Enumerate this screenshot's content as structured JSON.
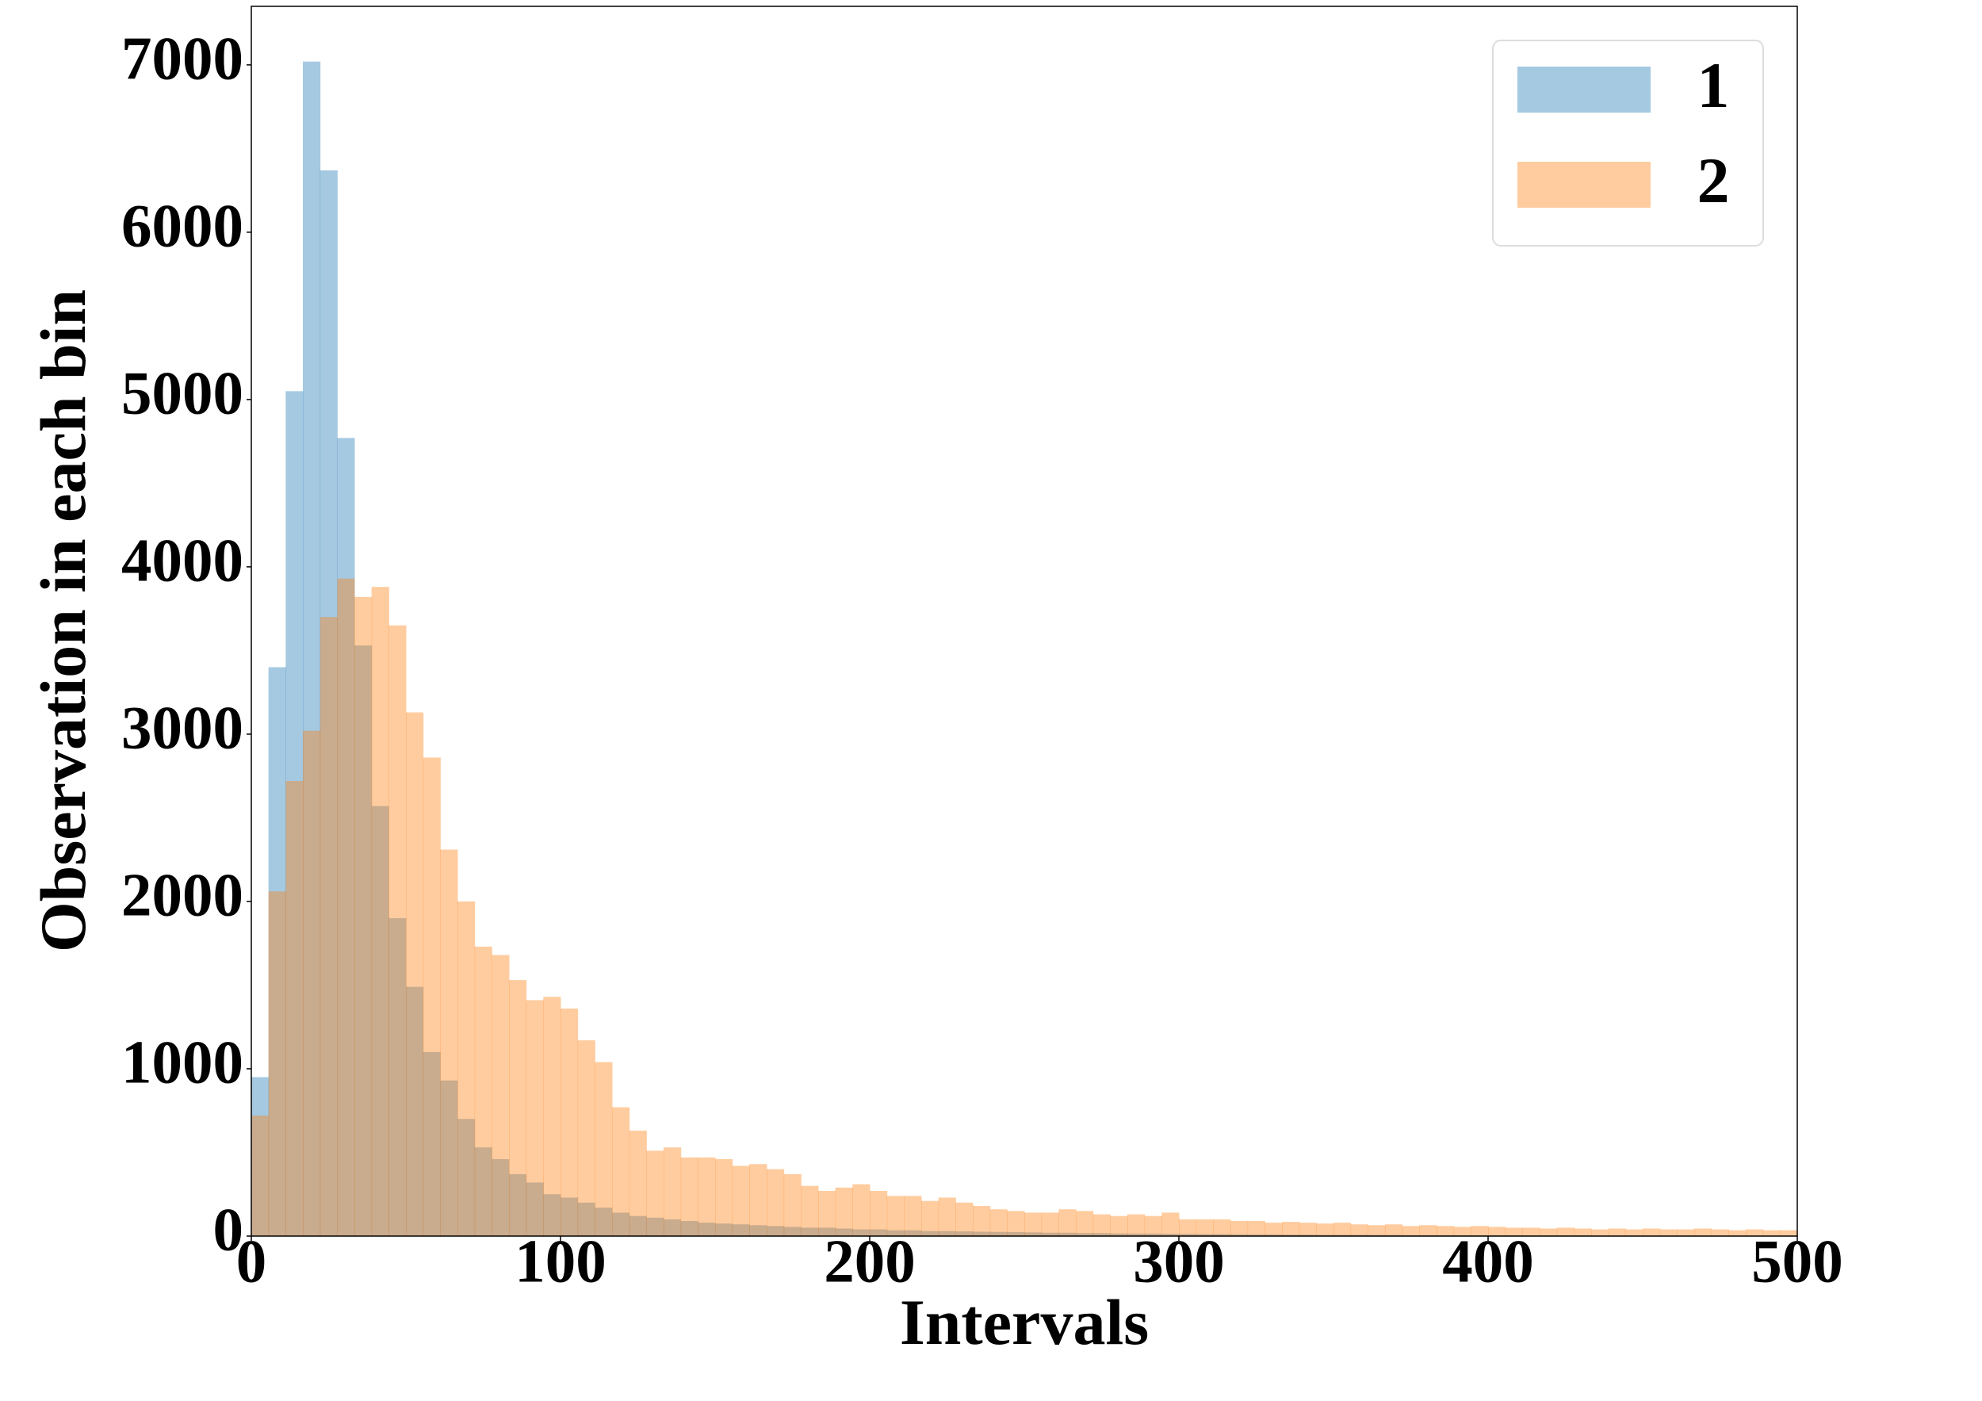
{
  "chart_data": {
    "type": "histogram",
    "xlabel": "Intervals",
    "ylabel": "Observation in each bin",
    "bins": [
      0,
      5.5556,
      11.1111,
      16.6667,
      22.2222,
      27.7778,
      33.3333,
      38.8889,
      44.4444,
      50,
      55.5556,
      61.1111,
      66.6667,
      72.2222,
      77.7778,
      83.3333,
      88.8889,
      94.4444,
      100,
      105.5556,
      111.1111,
      116.6667,
      122.2222,
      127.7778,
      133.3333,
      138.8889,
      144.4444,
      150,
      155.5556,
      161.1111,
      166.6667,
      172.2222,
      177.7778,
      183.3333,
      188.8889,
      194.4444,
      200,
      205.5556,
      211.1111,
      216.6667,
      222.2222,
      227.7778,
      233.3333,
      238.8889,
      244.4444,
      250,
      255.5556,
      261.1111,
      266.6667,
      272.2222,
      277.7778,
      283.3333,
      288.8889,
      294.4444,
      300,
      305.5556,
      311.1111,
      316.6667,
      322.2222,
      327.7778,
      333.3333,
      338.8889,
      344.4444,
      350,
      355.5556,
      361.1111,
      366.6667,
      372.2222,
      377.7778,
      383.3333,
      388.8889,
      394.4444,
      400,
      405.5556,
      411.1111,
      416.6667,
      422.2222,
      427.7778,
      433.3333,
      438.8889,
      444.4444,
      450,
      455.5556,
      461.1111,
      466.6667,
      472.2222,
      477.7778,
      483.3333,
      488.8889,
      494.4444,
      500
    ],
    "series": [
      {
        "name": "1",
        "color": "#1f77b4",
        "values": [
          950,
          3400,
          5050,
          7020,
          6370,
          4770,
          3530,
          2570,
          1900,
          1490,
          1100,
          930,
          700,
          530,
          460,
          370,
          320,
          250,
          230,
          200,
          170,
          140,
          120,
          110,
          100,
          90,
          80,
          75,
          70,
          65,
          60,
          55,
          50,
          50,
          45,
          40,
          40,
          35,
          35,
          30,
          30,
          28,
          26,
          25,
          24,
          22,
          20,
          20,
          18,
          18,
          16,
          15,
          15,
          14,
          13,
          12,
          12,
          11,
          10,
          10,
          9,
          9,
          8,
          8,
          8,
          7,
          7,
          6,
          6,
          6,
          5,
          5,
          5,
          5,
          4,
          4,
          4,
          4,
          3,
          3,
          3,
          3,
          3,
          2,
          2,
          2,
          2,
          2,
          2,
          2
        ]
      },
      {
        "name": "2",
        "color": "#ff7f0e",
        "values": [
          720,
          2060,
          2720,
          3020,
          3700,
          3930,
          3820,
          3880,
          3650,
          3130,
          2860,
          2310,
          2000,
          1730,
          1680,
          1530,
          1410,
          1430,
          1360,
          1170,
          1040,
          770,
          630,
          510,
          530,
          470,
          470,
          460,
          420,
          430,
          400,
          370,
          300,
          270,
          290,
          310,
          270,
          240,
          240,
          210,
          230,
          200,
          180,
          160,
          150,
          140,
          140,
          160,
          150,
          130,
          120,
          130,
          120,
          140,
          100,
          100,
          100,
          90,
          90,
          80,
          85,
          80,
          75,
          80,
          70,
          65,
          70,
          60,
          65,
          60,
          55,
          60,
          55,
          50,
          50,
          45,
          50,
          45,
          40,
          45,
          40,
          45,
          40,
          40,
          45,
          40,
          35,
          40,
          35,
          35
        ]
      }
    ],
    "alpha": 0.4,
    "xlim": [
      0,
      500
    ],
    "ylim": [
      0,
      7350
    ],
    "xticks": [
      0,
      100,
      200,
      300,
      400,
      500
    ],
    "yticks": [
      0,
      1000,
      2000,
      3000,
      4000,
      5000,
      6000,
      7000
    ],
    "legend": "upper right"
  }
}
